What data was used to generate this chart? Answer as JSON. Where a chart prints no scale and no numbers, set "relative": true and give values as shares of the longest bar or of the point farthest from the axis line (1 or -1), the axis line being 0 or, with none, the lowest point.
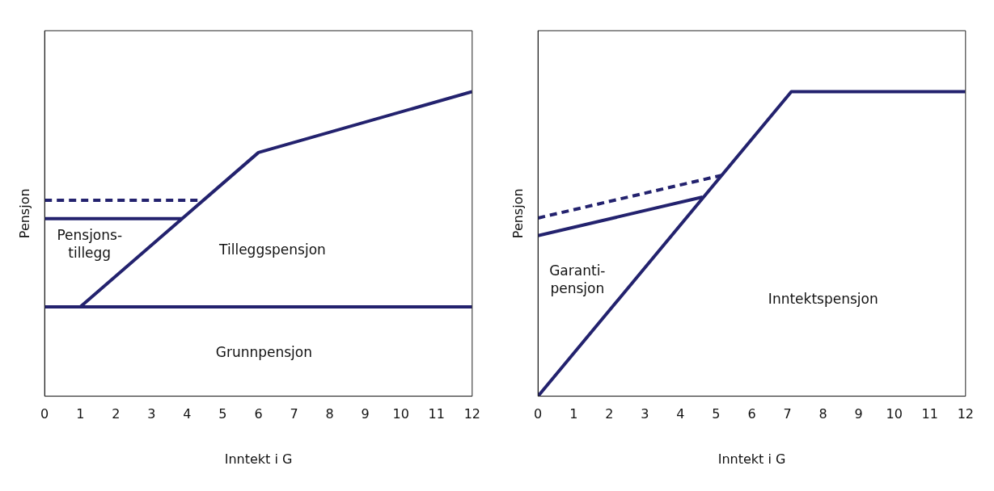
{
  "chart_data": [
    {
      "type": "line",
      "relative": true,
      "xlabel": "Inntekt i G",
      "ylabel": "Pensjon",
      "xlim": [
        0,
        12
      ],
      "xticks": [
        0,
        1,
        2,
        3,
        4,
        5,
        6,
        7,
        8,
        9,
        10,
        11,
        12
      ],
      "grid": false,
      "legend": false,
      "marker": "none",
      "series": [
        {
          "color": "#23226e",
          "line_style": "solid",
          "x": [
            0,
            12
          ],
          "values": [
            0.293,
            0.293
          ]
        },
        {
          "color": "#23226e",
          "line_style": "solid",
          "x": [
            1,
            6,
            12
          ],
          "values": [
            0.293,
            0.8,
            1
          ]
        },
        {
          "color": "#23226e",
          "line_style": "solid",
          "x": [
            0,
            3.86
          ],
          "values": [
            0.583,
            0.583
          ]
        },
        {
          "color": "#23226e",
          "line_style": "dashed",
          "x": [
            0,
            4.39
          ],
          "values": [
            0.643,
            0.643
          ]
        }
      ],
      "annotations": [
        "Pensjons-\ntillegg",
        "Tilleggspensjon",
        "Grunnpensjon"
      ]
    },
    {
      "type": "line",
      "relative": true,
      "xlabel": "Inntekt i G",
      "ylabel": "Pensjon",
      "xlim": [
        0,
        12
      ],
      "xticks": [
        0,
        1,
        2,
        3,
        4,
        5,
        6,
        7,
        8,
        9,
        10,
        11,
        12
      ],
      "grid": false,
      "legend": false,
      "marker": "none",
      "series": [
        {
          "color": "#23226e",
          "line_style": "solid",
          "x": [
            0,
            7.11,
            12
          ],
          "values": [
            0,
            1,
            1
          ]
        },
        {
          "color": "#23226e",
          "line_style": "solid",
          "x": [
            0,
            4.62
          ],
          "values": [
            0.527,
            0.654
          ]
        },
        {
          "color": "#23226e",
          "line_style": "dashed",
          "x": [
            0,
            5.15
          ],
          "values": [
            0.585,
            0.725
          ]
        }
      ],
      "annotations": [
        "Garanti-\npensjon",
        "Inntektspensjon"
      ]
    }
  ]
}
